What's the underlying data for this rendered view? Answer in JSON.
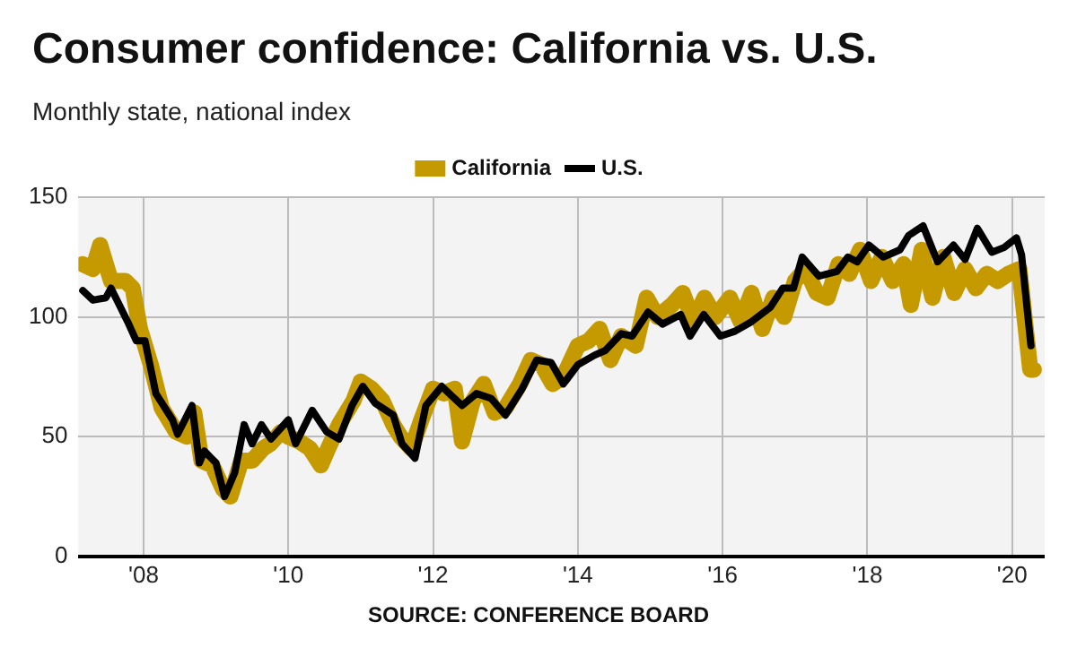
{
  "chart_data": {
    "type": "line",
    "title": "Consumer confidence: California vs. U.S.",
    "subtitle": "Monthly state, national index",
    "annotations": [
      "SOURCE: CONFERENCE BOARD"
    ],
    "xlim": [
      2007.1,
      2020.45
    ],
    "xticks": [
      {
        "value": 2008,
        "label": "'08"
      },
      {
        "value": 2010,
        "label": "'10"
      },
      {
        "value": 2012,
        "label": "'12"
      },
      {
        "value": 2014,
        "label": "'14"
      },
      {
        "value": 2016,
        "label": "'16"
      },
      {
        "value": 2018,
        "label": "'18"
      },
      {
        "value": 2020,
        "label": "'20"
      }
    ],
    "ylim": [
      0,
      150
    ],
    "yticks": [
      0,
      50,
      100,
      150
    ],
    "grid": true,
    "legend": "top",
    "marker": "none",
    "line_style": "solid",
    "series": [
      {
        "name": "California",
        "color": "#c49a00",
        "x": [
          2007.16,
          2007.3,
          2007.4,
          2007.55,
          2007.75,
          2007.85,
          2007.95,
          2008.1,
          2008.25,
          2008.45,
          2008.6,
          2008.7,
          2008.8,
          2008.95,
          2009.1,
          2009.2,
          2009.35,
          2009.5,
          2009.65,
          2009.75,
          2009.9,
          2010.0,
          2010.15,
          2010.3,
          2010.45,
          2010.55,
          2010.7,
          2010.9,
          2011.0,
          2011.15,
          2011.3,
          2011.45,
          2011.55,
          2011.7,
          2011.85,
          2012.0,
          2012.15,
          2012.3,
          2012.4,
          2012.55,
          2012.7,
          2012.85,
          2013.0,
          2013.2,
          2013.35,
          2013.5,
          2013.65,
          2013.8,
          2014.0,
          2014.15,
          2014.3,
          2014.45,
          2014.6,
          2014.8,
          2014.95,
          2015.1,
          2015.3,
          2015.45,
          2015.6,
          2015.75,
          2015.9,
          2016.1,
          2016.25,
          2016.4,
          2016.55,
          2016.7,
          2016.85,
          2017.0,
          2017.15,
          2017.3,
          2017.45,
          2017.6,
          2017.75,
          2017.9,
          2018.05,
          2018.2,
          2018.35,
          2018.5,
          2018.6,
          2018.75,
          2018.9,
          2019.05,
          2019.2,
          2019.35,
          2019.5,
          2019.65,
          2019.8,
          2019.95,
          2020.1,
          2020.25,
          2020.3
        ],
        "values": [
          122,
          120,
          130,
          115,
          115,
          112,
          95,
          80,
          62,
          52,
          50,
          60,
          40,
          38,
          28,
          25,
          40,
          40,
          45,
          47,
          52,
          50,
          48,
          45,
          38,
          45,
          55,
          65,
          73,
          70,
          65,
          55,
          50,
          45,
          58,
          70,
          68,
          70,
          48,
          65,
          72,
          60,
          62,
          72,
          82,
          80,
          72,
          75,
          88,
          90,
          95,
          82,
          92,
          88,
          108,
          100,
          105,
          110,
          98,
          108,
          100,
          108,
          98,
          110,
          95,
          108,
          100,
          115,
          120,
          110,
          108,
          122,
          118,
          128,
          115,
          125,
          115,
          122,
          105,
          128,
          108,
          125,
          110,
          120,
          112,
          118,
          115,
          118,
          120,
          78,
          78
        ]
      },
      {
        "name": "U.S.",
        "color": "#000000",
        "x": [
          2007.16,
          2007.3,
          2007.48,
          2007.55,
          2007.78,
          2007.9,
          2008.02,
          2008.17,
          2008.4,
          2008.47,
          2008.67,
          2008.77,
          2008.84,
          2009.0,
          2009.12,
          2009.26,
          2009.39,
          2009.5,
          2009.63,
          2009.76,
          2010.0,
          2010.1,
          2010.33,
          2010.53,
          2010.7,
          2010.88,
          2011.03,
          2011.2,
          2011.45,
          2011.57,
          2011.75,
          2011.9,
          2012.12,
          2012.4,
          2012.6,
          2012.8,
          2013.0,
          2013.23,
          2013.43,
          2013.63,
          2013.8,
          2014.0,
          2014.23,
          2014.38,
          2014.6,
          2014.75,
          2014.97,
          2015.17,
          2015.42,
          2015.55,
          2015.74,
          2015.97,
          2016.17,
          2016.4,
          2016.66,
          2016.83,
          2016.98,
          2017.1,
          2017.33,
          2017.58,
          2017.73,
          2017.86,
          2018.02,
          2018.22,
          2018.45,
          2018.57,
          2018.77,
          2018.97,
          2019.19,
          2019.35,
          2019.52,
          2019.72,
          2019.89,
          2020.06,
          2020.13,
          2020.26
        ],
        "values": [
          111,
          107,
          108,
          112,
          98,
          90,
          90,
          68,
          57,
          51,
          63,
          39,
          44,
          39,
          25,
          35,
          55,
          47,
          55,
          49,
          57,
          47,
          61,
          52,
          49,
          63,
          71,
          64,
          59,
          47,
          41,
          63,
          71,
          63,
          68,
          66,
          59,
          70,
          82,
          81,
          72,
          80,
          84,
          86,
          93,
          92,
          102,
          97,
          101,
          92,
          101,
          92,
          94,
          98,
          104,
          112,
          112,
          125,
          117,
          119,
          125,
          123,
          130,
          125,
          128,
          134,
          138,
          123,
          130,
          124,
          137,
          127,
          129,
          133,
          126,
          88
        ]
      }
    ]
  }
}
